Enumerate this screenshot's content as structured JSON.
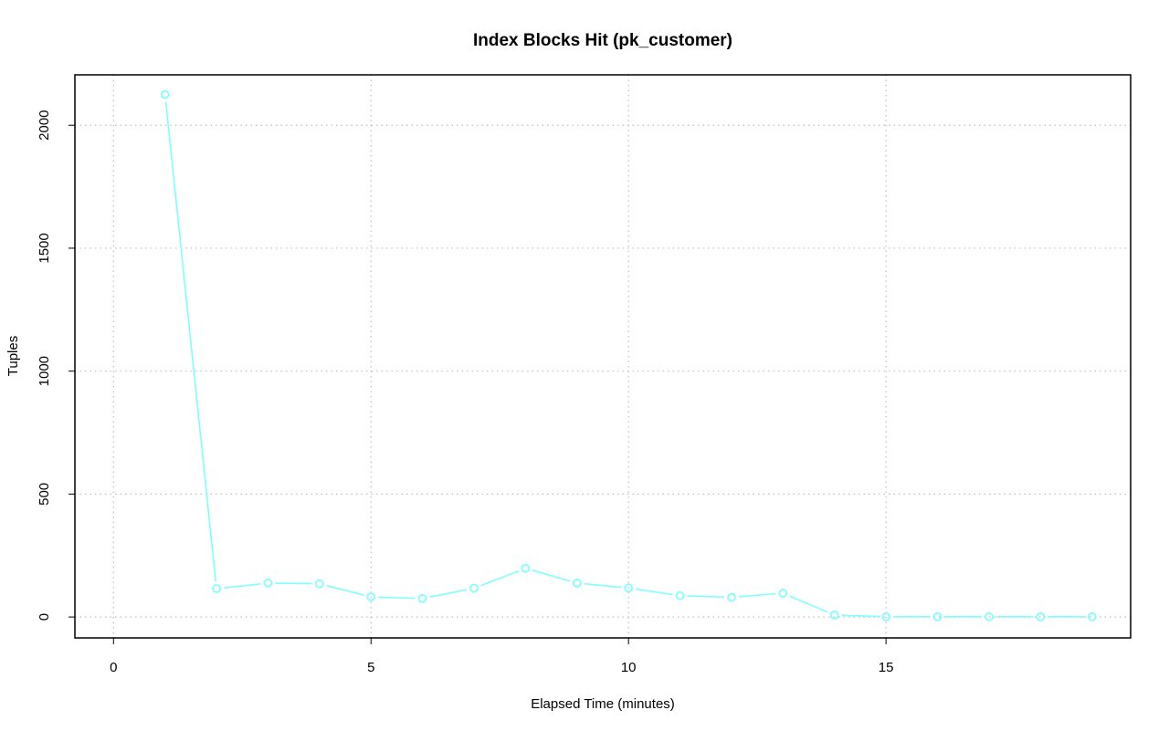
{
  "chart_data": {
    "type": "line",
    "title": "Index Blocks Hit (pk_customer)",
    "xlabel": "Elapsed Time (minutes)",
    "ylabel": "Tuples",
    "xlim": [
      -0.75,
      19.75
    ],
    "ylim": [
      -85,
      2205
    ],
    "xticks": [
      0,
      5,
      10,
      15
    ],
    "yticks": [
      0,
      500,
      1000,
      1500,
      2000
    ],
    "grid": true,
    "line_color": "#7fffff",
    "series": [
      {
        "x": [
          1,
          2,
          3,
          4,
          5,
          6,
          7,
          8,
          9,
          10,
          11,
          12,
          13,
          14,
          15,
          16,
          17,
          18,
          19
        ],
        "values": [
          2125,
          115,
          138,
          135,
          82,
          75,
          117,
          198,
          138,
          118,
          87,
          80,
          97,
          8,
          1,
          1,
          1,
          1,
          1
        ]
      }
    ]
  }
}
